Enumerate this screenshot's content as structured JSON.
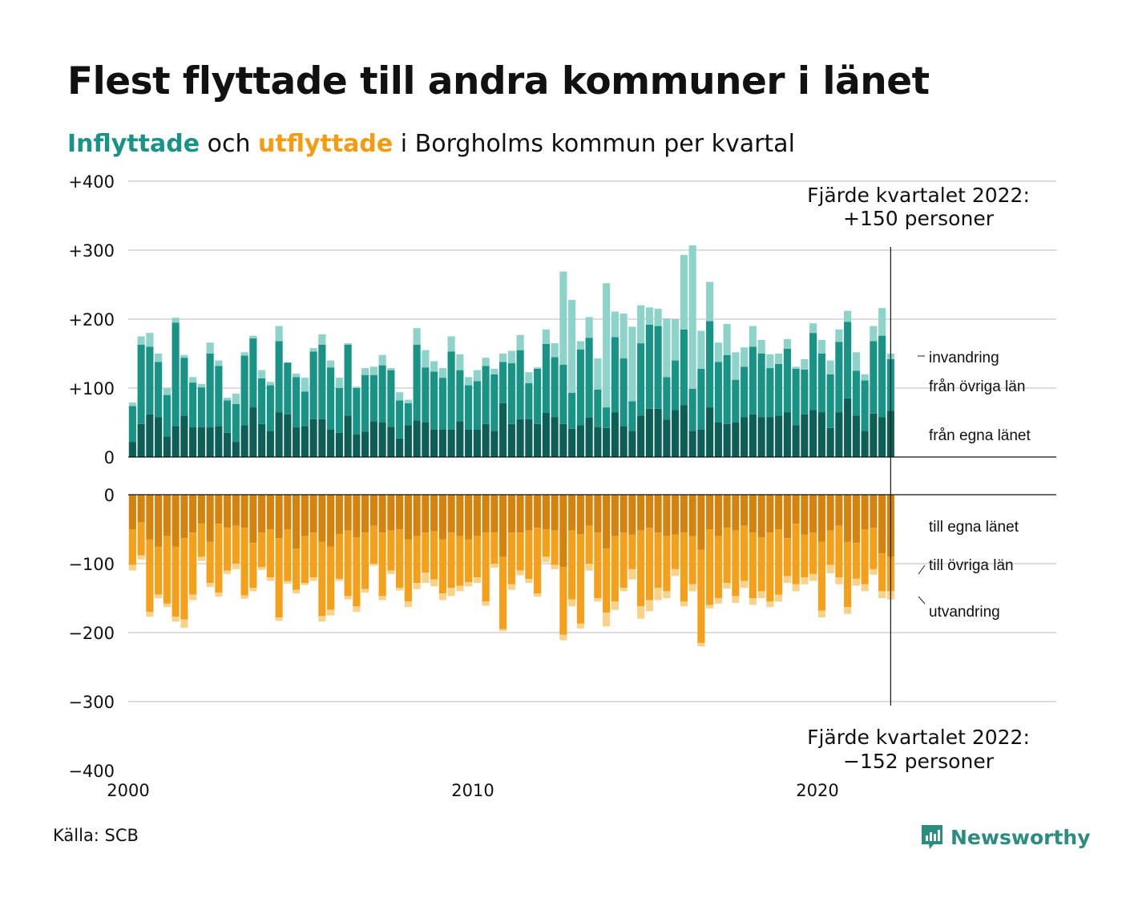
{
  "header": {
    "title": "Flest flyttade till andra kommuner i länet",
    "subtitle_in": "Inflyttade",
    "subtitle_mid": " och ",
    "subtitle_out": "utflyttade",
    "subtitle_rest": " i Borgholms kommun per kvartal"
  },
  "source": "Källa: SCB",
  "brand": "Newsworthy",
  "colors": {
    "in_egna": "#0d5e56",
    "in_ovriga": "#1a9387",
    "in_invandring": "#8ed3ca",
    "out_egna": "#d4830f",
    "out_ovriga": "#f5a01a",
    "out_utvandring": "#f9d28a",
    "grid": "#dddddd",
    "brand": "#2b8c80"
  },
  "chart_data": {
    "type": "bar",
    "stacked": true,
    "x_start": 2000,
    "period": "quarter",
    "xlim": [
      2000,
      2027
    ],
    "xticks": [
      "2000",
      "2010",
      "2020"
    ],
    "yticks_top": [
      "+400",
      "+300",
      "+200",
      "+100",
      "0"
    ],
    "yticks_bottom": [
      "0",
      "−100",
      "−200",
      "−300",
      "−400"
    ],
    "ylim_top": [
      0,
      400
    ],
    "ylim_bottom": [
      -400,
      0
    ],
    "inflyttade": [
      {
        "name": "från egna länet",
        "values": [
          22,
          48,
          62,
          58,
          30,
          45,
          60,
          43,
          43,
          43,
          45,
          35,
          22,
          46,
          72,
          48,
          38,
          65,
          62,
          43,
          45,
          55,
          55,
          40,
          35,
          60,
          33,
          37,
          52,
          50,
          44,
          27,
          46,
          53,
          50,
          40,
          40,
          40,
          52,
          40,
          40,
          48,
          38,
          78,
          48,
          55,
          55,
          48,
          64,
          58,
          48,
          41,
          46,
          57,
          43,
          42,
          65,
          45,
          38,
          60,
          70,
          70,
          54,
          68,
          75,
          38,
          40,
          72,
          50,
          48,
          50,
          58,
          62,
          58,
          58,
          60,
          65,
          46,
          62,
          68,
          65,
          42,
          65,
          85,
          60,
          38,
          63,
          58,
          67
        ]
      },
      {
        "name": "från övriga län",
        "values": [
          52,
          115,
          98,
          80,
          60,
          150,
          84,
          65,
          58,
          107,
          87,
          47,
          55,
          101,
          100,
          66,
          66,
          103,
          75,
          73,
          50,
          98,
          108,
          90,
          65,
          103,
          67,
          82,
          67,
          83,
          82,
          55,
          32,
          110,
          80,
          84,
          75,
          113,
          74,
          64,
          70,
          84,
          82,
          60,
          88,
          100,
          52,
          80,
          100,
          87,
          86,
          52,
          110,
          116,
          55,
          30,
          109,
          98,
          43,
          105,
          122,
          120,
          62,
          72,
          110,
          61,
          88,
          125,
          88,
          100,
          62,
          73,
          98,
          92,
          71,
          75,
          92,
          82,
          65,
          112,
          85,
          78,
          102,
          111,
          65,
          73,
          105,
          118,
          75
        ]
      },
      {
        "name": "invandring",
        "values": [
          5,
          12,
          20,
          12,
          10,
          7,
          4,
          8,
          5,
          16,
          8,
          4,
          15,
          5,
          4,
          12,
          5,
          22,
          0,
          5,
          20,
          5,
          15,
          10,
          15,
          2,
          2,
          10,
          12,
          15,
          3,
          12,
          5,
          24,
          25,
          15,
          14,
          22,
          23,
          12,
          16,
          12,
          8,
          12,
          18,
          22,
          16,
          2,
          21,
          20,
          135,
          135,
          12,
          30,
          45,
          180,
          37,
          65,
          108,
          55,
          25,
          25,
          85,
          60,
          108,
          208,
          55,
          57,
          28,
          45,
          40,
          28,
          30,
          20,
          20,
          15,
          14,
          3,
          15,
          14,
          20,
          20,
          18,
          16,
          27,
          9,
          22,
          40,
          8
        ]
      }
    ],
    "utflyttade": [
      {
        "name": "till egna länet",
        "values": [
          50,
          40,
          65,
          75,
          60,
          75,
          63,
          55,
          42,
          68,
          42,
          48,
          45,
          48,
          70,
          55,
          50,
          63,
          50,
          78,
          60,
          55,
          68,
          75,
          57,
          52,
          62,
          55,
          45,
          55,
          52,
          50,
          65,
          60,
          55,
          53,
          65,
          55,
          60,
          65,
          60,
          55,
          55,
          90,
          55,
          55,
          52,
          48,
          50,
          52,
          105,
          52,
          57,
          45,
          55,
          78,
          60,
          55,
          58,
          52,
          48,
          55,
          60,
          58,
          55,
          60,
          80,
          50,
          60,
          48,
          52,
          45,
          55,
          62,
          55,
          50,
          63,
          42,
          58,
          55,
          68,
          52,
          45,
          68,
          70,
          50,
          48,
          85,
          90
        ]
      },
      {
        "name": "till övriga län",
        "values": [
          52,
          48,
          105,
          70,
          98,
          102,
          118,
          90,
          48,
          60,
          100,
          62,
          55,
          98,
          65,
          50,
          70,
          115,
          75,
          60,
          68,
          65,
          108,
          92,
          65,
          95,
          100,
          82,
          55,
          92,
          58,
          85,
          90,
          68,
          58,
          70,
          78,
          80,
          72,
          62,
          60,
          100,
          45,
          105,
          75,
          55,
          70,
          95,
          40,
          50,
          98,
          100,
          130,
          55,
          95,
          93,
          95,
          80,
          50,
          110,
          105,
          80,
          80,
          50,
          100,
          70,
          135,
          110,
          90,
          80,
          95,
          80,
          95,
          78,
          100,
          95,
          55,
          88,
          62,
          60,
          100,
          50,
          75,
          95,
          52,
          80,
          60,
          55,
          50
        ]
      },
      {
        "name": "utvandring",
        "values": [
          8,
          6,
          7,
          5,
          5,
          7,
          12,
          8,
          6,
          6,
          6,
          5,
          8,
          5,
          5,
          4,
          5,
          5,
          4,
          5,
          3,
          5,
          8,
          8,
          3,
          5,
          8,
          5,
          3,
          6,
          5,
          4,
          8,
          9,
          15,
          10,
          10,
          12,
          8,
          6,
          8,
          6,
          6,
          3,
          8,
          7,
          6,
          5,
          8,
          6,
          8,
          10,
          7,
          10,
          5,
          20,
          12,
          5,
          15,
          18,
          16,
          18,
          10,
          10,
          7,
          10,
          5,
          5,
          8,
          8,
          10,
          10,
          10,
          10,
          8,
          10,
          10,
          10,
          10,
          10,
          10,
          12,
          10,
          10,
          10,
          10,
          8,
          10,
          12
        ]
      }
    ],
    "legend_in": [
      "invandring",
      "från övriga län",
      "från egna länet"
    ],
    "legend_out": [
      "till egna länet",
      "till övriga län",
      "utvandring"
    ],
    "annotation_in": {
      "line1": "Fjärde kvartalet 2022:",
      "line2": "+150 personer",
      "value": 150
    },
    "annotation_out": {
      "line1": "Fjärde kvartalet 2022:",
      "line2": "−152 personer",
      "value": -152
    }
  }
}
